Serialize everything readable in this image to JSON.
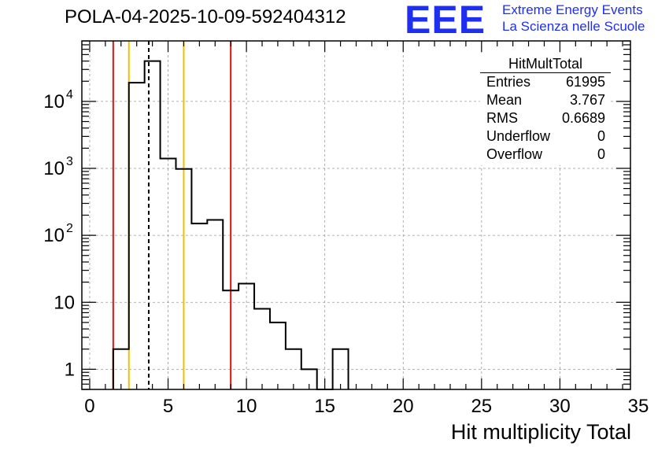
{
  "title": "POLA-04-2025-10-09-592404312",
  "logo": {
    "text": "EEE",
    "line1": "Extreme Energy Events",
    "line2": "La Scienza nelle Scuole",
    "color": "#1f2ff0"
  },
  "stats": {
    "name": "HitMultTotal",
    "rows": [
      {
        "key": "Entries",
        "value": "61995"
      },
      {
        "key": "Mean",
        "value": "3.767"
      },
      {
        "key": "RMS",
        "value": "0.6689"
      },
      {
        "key": "Underflow",
        "value": "0"
      },
      {
        "key": "Overflow",
        "value": "0"
      }
    ]
  },
  "chart_data": {
    "type": "histogram",
    "title": "POLA-04-2025-10-09-592404312",
    "xlabel": "Hit multiplicity Total",
    "ylabel": "",
    "xlim": [
      -0.5,
      34.5
    ],
    "ylim_log": [
      0.5,
      80000
    ],
    "yscale": "log",
    "grid": true,
    "bin_width": 1,
    "bins_start": [
      1.5,
      2.5,
      3.5,
      4.5,
      5.5,
      6.5,
      7.5,
      8.5,
      9.5,
      10.5,
      11.5,
      12.5,
      13.5,
      14.5,
      15.5
    ],
    "bin_counts": [
      2,
      19000,
      40000,
      1400,
      980,
      150,
      170,
      15,
      19,
      8,
      5,
      2,
      1,
      0,
      2
    ],
    "x_ticks": [
      0,
      5,
      10,
      15,
      20,
      25,
      30,
      35
    ],
    "x_tick_labels": [
      "0",
      "5",
      "10",
      "15",
      "20",
      "25",
      "30",
      "35"
    ],
    "y_ticks": [
      1,
      10,
      100,
      1000,
      10000
    ],
    "y_tick_labels": [
      {
        "base": "1",
        "exp": ""
      },
      {
        "base": "10",
        "exp": ""
      },
      {
        "base": "10",
        "exp": "2"
      },
      {
        "base": "10",
        "exp": "3"
      },
      {
        "base": "10",
        "exp": "4"
      }
    ],
    "vertical_lines": [
      {
        "x": 1.5,
        "color": "#e01010",
        "style": "solid"
      },
      {
        "x": 2.5,
        "color": "#f0c000",
        "style": "solid"
      },
      {
        "x": 3.767,
        "color": "#000000",
        "style": "dashed"
      },
      {
        "x": 6.0,
        "color": "#f0c000",
        "style": "solid"
      },
      {
        "x": 9.0,
        "color": "#e01010",
        "style": "solid"
      }
    ]
  }
}
